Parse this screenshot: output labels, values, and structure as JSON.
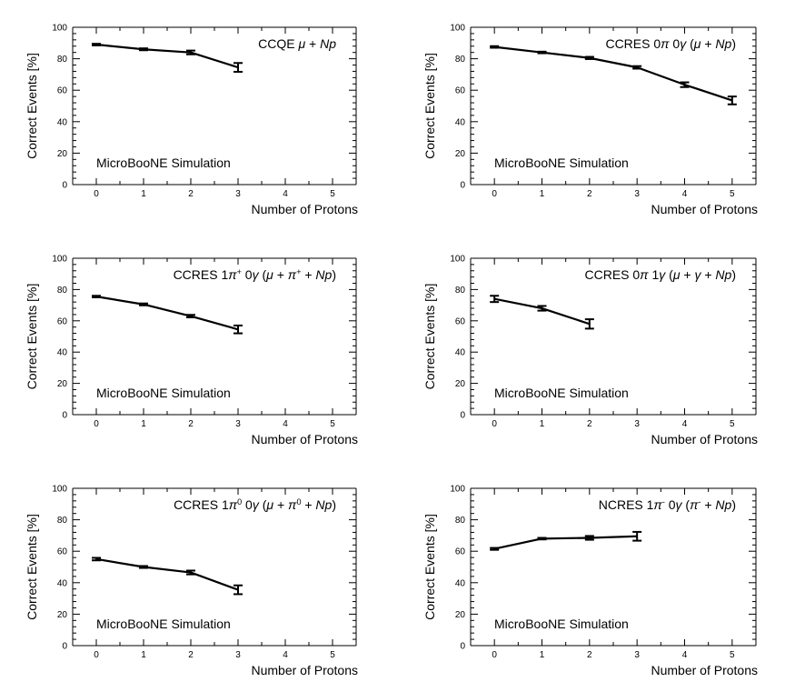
{
  "figure_title": "",
  "chart_data": [
    {
      "type": "line",
      "title_parts": [
        {
          "t": "CCQE "
        },
        {
          "t": "μ",
          "i": true
        },
        {
          "t": " + "
        },
        {
          "t": "Np",
          "i": true
        }
      ],
      "xlabel": "Number of Protons",
      "ylabel": "Correct Events [%]",
      "annotation": "MicroBooNE Simulation",
      "xlim": [
        -0.5,
        5.5
      ],
      "ylim": [
        0,
        100
      ],
      "xticks": [
        "0",
        "1",
        "2",
        "3",
        "4",
        "5"
      ],
      "yticks": [
        "0",
        "20",
        "40",
        "60",
        "80",
        "100"
      ],
      "series": [
        {
          "name": "CCQE",
          "x": [
            0,
            1,
            2,
            3
          ],
          "values": [
            89,
            86,
            84,
            74.5
          ],
          "errors": [
            0.5,
            0.6,
            1.2,
            2.8
          ]
        }
      ]
    },
    {
      "type": "line",
      "title_parts": [
        {
          "t": "CCRES 0"
        },
        {
          "t": "π",
          "i": true
        },
        {
          "t": " 0"
        },
        {
          "t": "γ",
          "i": true
        },
        {
          "t": " ("
        },
        {
          "t": "μ",
          "i": true
        },
        {
          "t": " + "
        },
        {
          "t": "Np",
          "i": true
        },
        {
          "t": ")"
        }
      ],
      "xlabel": "Number of Protons",
      "ylabel": "Correct Events [%]",
      "annotation": "MicroBooNE Simulation",
      "xlim": [
        -0.5,
        5.5
      ],
      "ylim": [
        0,
        100
      ],
      "xticks": [
        "0",
        "1",
        "2",
        "3",
        "4",
        "5"
      ],
      "yticks": [
        "0",
        "20",
        "40",
        "60",
        "80",
        "100"
      ],
      "series": [
        {
          "name": "CCRES 0pi 0gamma",
          "x": [
            0,
            1,
            2,
            3,
            4,
            5
          ],
          "values": [
            87.5,
            84,
            80.5,
            74.5,
            63.5,
            53.5
          ],
          "errors": [
            0.5,
            0.5,
            0.7,
            0.8,
            1.5,
            2.5
          ]
        }
      ]
    },
    {
      "type": "line",
      "title_parts": [
        {
          "t": "CCRES 1"
        },
        {
          "t": "π",
          "i": true
        },
        {
          "t": "+",
          "sup": true
        },
        {
          "t": " 0"
        },
        {
          "t": "γ",
          "i": true
        },
        {
          "t": " ("
        },
        {
          "t": "μ",
          "i": true
        },
        {
          "t": " + "
        },
        {
          "t": "π",
          "i": true
        },
        {
          "t": "+",
          "sup": true
        },
        {
          "t": " + "
        },
        {
          "t": "Np",
          "i": true
        },
        {
          "t": ")"
        }
      ],
      "xlabel": "Number of Protons",
      "ylabel": "Correct Events [%]",
      "annotation": "MicroBooNE Simulation",
      "xlim": [
        -0.5,
        5.5
      ],
      "ylim": [
        0,
        100
      ],
      "xticks": [
        "0",
        "1",
        "2",
        "3",
        "4",
        "5"
      ],
      "yticks": [
        "0",
        "20",
        "40",
        "60",
        "80",
        "100"
      ],
      "series": [
        {
          "name": "CCRES 1pi+ 0gamma",
          "x": [
            0,
            1,
            2,
            3
          ],
          "values": [
            75.5,
            70.5,
            63,
            54.5
          ],
          "errors": [
            0.5,
            0.6,
            0.8,
            2.5
          ]
        }
      ]
    },
    {
      "type": "line",
      "title_parts": [
        {
          "t": "CCRES 0"
        },
        {
          "t": "π",
          "i": true
        },
        {
          "t": " 1"
        },
        {
          "t": "γ",
          "i": true
        },
        {
          "t": " ("
        },
        {
          "t": "μ",
          "i": true
        },
        {
          "t": " + "
        },
        {
          "t": "γ",
          "i": true
        },
        {
          "t": " + "
        },
        {
          "t": "Np",
          "i": true
        },
        {
          "t": ")"
        }
      ],
      "xlabel": "Number of Protons",
      "ylabel": "Correct Events [%]",
      "annotation": "MicroBooNE Simulation",
      "xlim": [
        -0.5,
        5.5
      ],
      "ylim": [
        0,
        100
      ],
      "xticks": [
        "0",
        "1",
        "2",
        "3",
        "4",
        "5"
      ],
      "yticks": [
        "0",
        "20",
        "40",
        "60",
        "80",
        "100"
      ],
      "series": [
        {
          "name": "CCRES 0pi 1gamma",
          "x": [
            0,
            1,
            2
          ],
          "values": [
            74,
            68,
            58
          ],
          "errors": [
            2,
            1.5,
            3
          ]
        }
      ]
    },
    {
      "type": "line",
      "title_parts": [
        {
          "t": "CCRES 1"
        },
        {
          "t": "π",
          "i": true
        },
        {
          "t": "0",
          "sup": true
        },
        {
          "t": " 0"
        },
        {
          "t": "γ",
          "i": true
        },
        {
          "t": " ("
        },
        {
          "t": "μ",
          "i": true
        },
        {
          "t": " + "
        },
        {
          "t": "π",
          "i": true
        },
        {
          "t": "0",
          "sup": true
        },
        {
          "t": " + "
        },
        {
          "t": "Np",
          "i": true
        },
        {
          "t": ")"
        }
      ],
      "xlabel": "Number of Protons",
      "ylabel": "Correct Events [%]",
      "annotation": "MicroBooNE Simulation",
      "xlim": [
        -0.5,
        5.5
      ],
      "ylim": [
        0,
        100
      ],
      "xticks": [
        "0",
        "1",
        "2",
        "3",
        "4",
        "5"
      ],
      "yticks": [
        "0",
        "20",
        "40",
        "60",
        "80",
        "100"
      ],
      "series": [
        {
          "name": "CCRES 1pi0 0gamma",
          "x": [
            0,
            1,
            2,
            3
          ],
          "values": [
            55,
            50,
            46.5,
            35.5
          ],
          "errors": [
            0.8,
            0.6,
            1.2,
            2.8
          ]
        }
      ]
    },
    {
      "type": "line",
      "title_parts": [
        {
          "t": "NCRES 1"
        },
        {
          "t": "π",
          "i": true
        },
        {
          "t": "-",
          "sup": true
        },
        {
          "t": " 0"
        },
        {
          "t": "γ",
          "i": true
        },
        {
          "t": " ("
        },
        {
          "t": "π",
          "i": true
        },
        {
          "t": "-",
          "sup": true
        },
        {
          "t": " + "
        },
        {
          "t": "Np",
          "i": true
        },
        {
          "t": ")"
        }
      ],
      "xlabel": "Number of Protons",
      "ylabel": "Correct Events [%]",
      "annotation": "MicroBooNE Simulation",
      "xlim": [
        -0.5,
        5.5
      ],
      "ylim": [
        0,
        100
      ],
      "xticks": [
        "0",
        "1",
        "2",
        "3",
        "4",
        "5"
      ],
      "yticks": [
        "0",
        "20",
        "40",
        "60",
        "80",
        "100"
      ],
      "series": [
        {
          "name": "NCRES 1pi- 0gamma",
          "x": [
            0,
            1,
            2,
            3
          ],
          "values": [
            61.5,
            68,
            68.5,
            69.5
          ],
          "errors": [
            0.6,
            0.5,
            1.2,
            2.8
          ]
        }
      ]
    }
  ]
}
